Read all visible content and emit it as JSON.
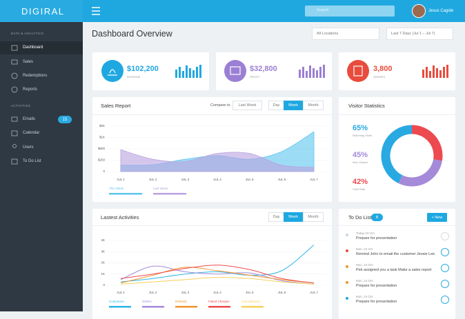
{
  "sidebar": {
    "brand": "DIGIRAL",
    "sections": [
      {
        "title": "DATA & ANALYTICS",
        "items": [
          "Dashboard",
          "Sales",
          "Redemptions",
          "Reports"
        ]
      },
      {
        "title": "ACTIVITIES",
        "items": [
          "Emails",
          "Calendar",
          "Users",
          "To Do List"
        ]
      }
    ],
    "email_badge": "15"
  },
  "topbar": {
    "search_placeholder": "Search",
    "user": "Jesus Cagide"
  },
  "page": {
    "title": "Dashboard Overview",
    "location_filter": "All Locations",
    "date_filter": "Last 7 Days (Jul 1 – Jul 7)"
  },
  "stats": [
    {
      "value": "$102,200",
      "label": "REVENUE"
    },
    {
      "value": "$32,800",
      "label": "PROFIT"
    },
    {
      "value": "3,800",
      "label": "ORDERS"
    }
  ],
  "sales_controls": {
    "compare_label": "Compare to",
    "compare_value": "Last Week",
    "tabs": [
      "Day",
      "Week",
      "Month"
    ]
  },
  "activities_tabs": [
    "Day",
    "Week",
    "Month"
  ],
  "todo": {
    "title": "To Do List",
    "count": "6",
    "new_button": "+ New",
    "items": [
      {
        "date": "Today-23 Oct",
        "text": "Prepare for presentation"
      },
      {
        "date": "Mon, 24 Oct",
        "text": "Remind John to email the customer Jessie Lee"
      },
      {
        "date": "Mon, 24 Oct",
        "text": "Pek assigned you a task Make a sales report"
      },
      {
        "date": "Mon, 24 Oct",
        "text": "Prepare for presentation"
      },
      {
        "date": "Mon, 24 Oct",
        "text": "Prepare for presentation"
      }
    ]
  },
  "chart_data": [
    {
      "type": "area",
      "title": "Sales Report",
      "categories": [
        "JUL 1",
        "JUL 2",
        "JUL 3",
        "JUL 4",
        "JUL 5",
        "JUL 6",
        "JUL 7"
      ],
      "series": [
        {
          "name": "This Week",
          "color": "#5cc4ef",
          "values": [
            140,
            150,
            270,
            350,
            270,
            440,
            1500
          ]
        },
        {
          "name": "Last Week",
          "color": "#b9a2e0",
          "values": [
            480,
            270,
            220,
            400,
            400,
            140,
            90
          ]
        }
      ],
      "ylim": [
        0,
        2000
      ],
      "yticks": [
        0,
        {
          "value": 250,
          "label": "$250"
        },
        {
          "value": 500,
          "label": "$500"
        },
        {
          "value": 1000,
          "label": "$1K"
        },
        {
          "value": 2000,
          "label": "$2K"
        }
      ],
      "grid": true
    },
    {
      "type": "pie",
      "title": "Visitor Statistics",
      "categories": [
        "Returning Visits",
        "New Visitors",
        "Click Rate"
      ],
      "values": [
        65,
        45,
        42
      ],
      "value_labels": [
        "65%",
        "45%",
        "42%"
      ],
      "colors": [
        "#29a9e1",
        "#a48ad8",
        "#ec4a4f"
      ]
    },
    {
      "type": "line",
      "title": "Lastest Activities",
      "categories": [
        "JUL 1",
        "JUL 2",
        "JUL 3",
        "JUL 4",
        "JUL 5",
        "JUL 6",
        "JUL 7"
      ],
      "series": [
        {
          "name": "Customers",
          "color": "#29b6e6",
          "values": [
            300,
            600,
            1000,
            1200,
            900,
            1300,
            3600
          ]
        },
        {
          "name": "Orders",
          "color": "#a48ad8",
          "values": [
            500,
            1700,
            1200,
            1000,
            1100,
            400,
            100
          ]
        },
        {
          "name": "Refunds",
          "color": "#f0932b",
          "values": [
            200,
            900,
            1600,
            1300,
            900,
            500,
            200
          ]
        },
        {
          "name": "Failed Charges",
          "color": "#ec4a4f",
          "values": [
            600,
            1000,
            1500,
            1800,
            1400,
            600,
            200
          ]
        },
        {
          "name": "Cancellations",
          "color": "#f5cf5b",
          "values": [
            100,
            300,
            500,
            700,
            600,
            300,
            100
          ]
        }
      ],
      "ylim": [
        0,
        4000
      ],
      "yticks": [
        0,
        {
          "value": 1000,
          "label": "1K"
        },
        {
          "value": 2000,
          "label": "2K"
        },
        {
          "value": 3000,
          "label": "3K"
        },
        {
          "value": 4000,
          "label": "4K"
        }
      ],
      "grid": true
    }
  ]
}
